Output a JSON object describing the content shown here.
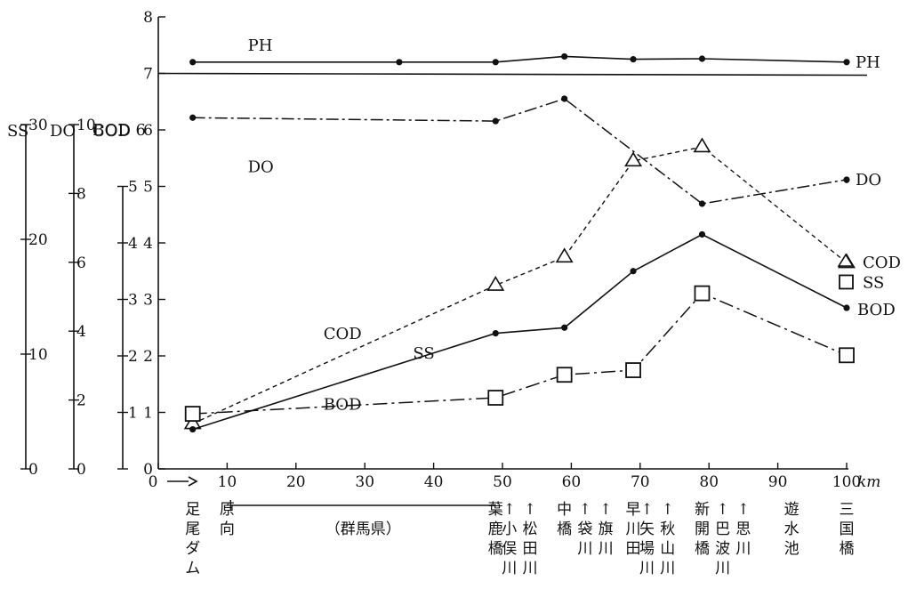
{
  "chart_data": {
    "type": "line",
    "x_unit": "km",
    "xlim": [
      0,
      100
    ],
    "x_ticks": [
      0,
      10,
      20,
      30,
      40,
      50,
      60,
      70,
      80,
      90,
      100
    ],
    "x_tick_labels": [
      "0",
      "10",
      "20",
      "30",
      "40",
      "50",
      "60",
      "70",
      "80",
      "90",
      "100"
    ],
    "axes": [
      {
        "id": "bod_cod",
        "title_top": "BOD",
        "title": "COD",
        "range": [
          0,
          8
        ],
        "ticks": [
          "0",
          "1",
          "2",
          "3",
          "4",
          "5",
          "6",
          "7",
          "8"
        ]
      },
      {
        "id": "do",
        "title": "DO",
        "range": [
          0,
          10
        ],
        "ticks": [
          "0",
          "2",
          "4",
          "6",
          "8",
          "10"
        ]
      },
      {
        "id": "ss",
        "title": "SS",
        "range": [
          0,
          30
        ],
        "ticks": [
          "0",
          "10",
          "20",
          "30"
        ]
      }
    ],
    "ph_reference": 7,
    "series": [
      {
        "name": "PH",
        "axis": "bod_cod",
        "style": "solid",
        "marker": "dot",
        "x": [
          5,
          35,
          49,
          59,
          69,
          79,
          100
        ],
        "y": [
          7.2,
          7.2,
          7.2,
          7.3,
          7.25,
          7.26,
          7.2
        ]
      },
      {
        "name": "DO",
        "axis": "do",
        "style": "dashdot",
        "marker": "dot",
        "x": [
          5,
          49,
          59,
          79,
          100
        ],
        "y": [
          10.2,
          10.1,
          10.75,
          7.7,
          8.4
        ]
      },
      {
        "name": "COD",
        "axis": "bod_cod",
        "style": "dashed",
        "marker": "triangle",
        "x": [
          5,
          49,
          59,
          69,
          79,
          100
        ],
        "y": [
          0.8,
          3.25,
          3.75,
          5.45,
          5.7,
          3.65
        ]
      },
      {
        "name": "SS",
        "axis": "ss",
        "style": "longdash",
        "marker": "square",
        "x": [
          5,
          49,
          59,
          69,
          79,
          100
        ],
        "y": [
          4.8,
          6.2,
          8.2,
          8.6,
          15.3,
          9.9
        ]
      },
      {
        "name": "BOD",
        "axis": "bod_cod",
        "style": "solid",
        "marker": "dot",
        "x": [
          5,
          49,
          59,
          69,
          79,
          100
        ],
        "y": [
          0.7,
          2.4,
          2.5,
          3.5,
          4.15,
          2.85
        ]
      }
    ],
    "inline_labels": [
      {
        "text": "PH",
        "x": 13,
        "y": 7.4
      },
      {
        "text": "DO",
        "x": 13,
        "y": 5.25
      },
      {
        "text": "COD",
        "x": 24,
        "y": 2.3
      },
      {
        "text": "SS",
        "x": 37,
        "y": 1.95
      },
      {
        "text": "BOD",
        "x": 24,
        "y": 1.05
      }
    ],
    "end_labels": [
      "PH",
      "DO",
      "COD",
      "SS",
      "BOD"
    ],
    "region_label": "（群馬県）",
    "locations": [
      {
        "x": 5,
        "text": "足尾ダム"
      },
      {
        "x": 10,
        "text": "原向"
      },
      {
        "x": 49,
        "text": "葉鹿橋",
        "arrow": false
      },
      {
        "x": 51,
        "text": "小俣川",
        "arrow": true
      },
      {
        "x": 54,
        "text": "松田川",
        "arrow": true
      },
      {
        "x": 59,
        "text": "中橋",
        "arrow": false
      },
      {
        "x": 62,
        "text": "袋川",
        "arrow": true
      },
      {
        "x": 65,
        "text": "旗川",
        "arrow": true
      },
      {
        "x": 69,
        "text": "早川田",
        "arrow": false
      },
      {
        "x": 71,
        "text": "矢場川",
        "arrow": true
      },
      {
        "x": 74,
        "text": "秋山川",
        "arrow": true
      },
      {
        "x": 79,
        "text": "新開橋",
        "arrow": false
      },
      {
        "x": 82,
        "text": "巴波川",
        "arrow": true
      },
      {
        "x": 85,
        "text": "思川",
        "arrow": true
      },
      {
        "x": 92,
        "text": "遊水池",
        "arrow": false
      },
      {
        "x": 100,
        "text": "三国橋",
        "arrow": false
      }
    ]
  }
}
